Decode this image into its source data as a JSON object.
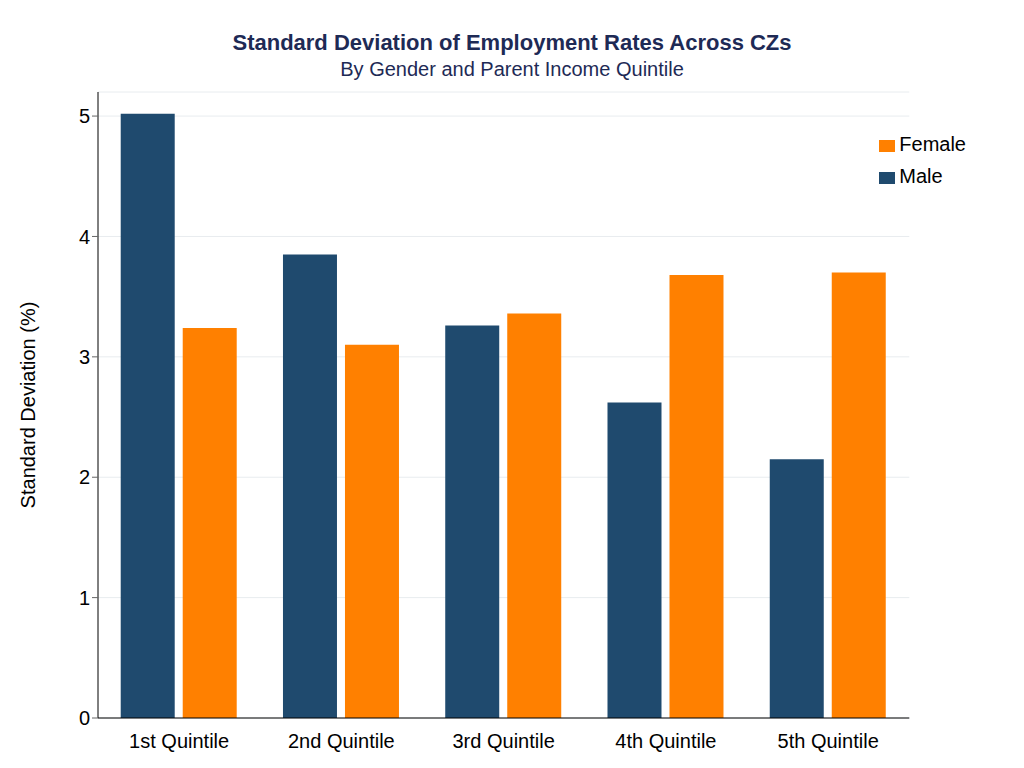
{
  "chart_data": {
    "type": "bar",
    "title": "Standard Deviation of Employment Rates Across CZs",
    "subtitle": "By Gender and Parent Income Quintile",
    "y_label": "Standard Deviation (%)",
    "categories": [
      "1st Quintile",
      "2nd Quintile",
      "3rd Quintile",
      "4th Quintile",
      "5th Quintile"
    ],
    "series": [
      {
        "name": "Male",
        "color": "#1f4a6e",
        "values": [
          5.02,
          3.85,
          3.26,
          2.62,
          2.15
        ]
      },
      {
        "name": "Female",
        "color": "#ff8000",
        "values": [
          3.24,
          3.1,
          3.36,
          3.68,
          3.7
        ]
      }
    ],
    "ylim": [
      0,
      5.2
    ],
    "yticks": [
      0,
      1,
      2,
      3,
      4,
      5
    ],
    "grid": true,
    "legend": "upper right"
  }
}
